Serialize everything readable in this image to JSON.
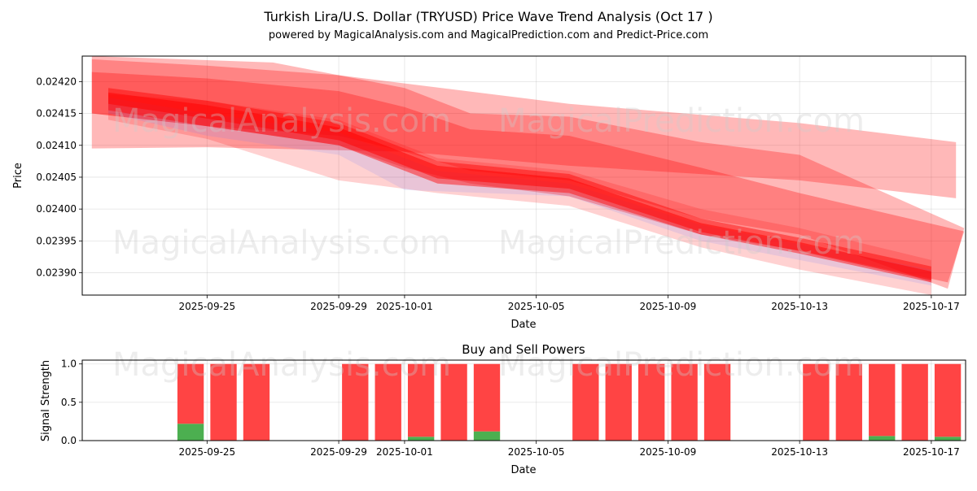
{
  "watermarks": [
    "MagicalAnalysis.com",
    "MagicalPrediction.com"
  ],
  "chart_data": [
    {
      "type": "area",
      "title": "Turkish Lira/U.S. Dollar (TRYUSD) Price Wave Trend Analysis (Oct 17 )",
      "subtitle": "powered by MagicalAnalysis.com and MagicalPrediction.com and Predict-Price.com",
      "xlabel": "Date",
      "ylabel": "Price",
      "xlim": [
        "2025-09-21T05:00",
        "2025-10-18T01:00"
      ],
      "ylim": [
        0.023865,
        0.02424
      ],
      "xticks": [
        "2025-09-25",
        "2025-09-29",
        "2025-10-01",
        "2025-10-05",
        "2025-10-09",
        "2025-10-13",
        "2025-10-17"
      ],
      "yticks": [
        "0.02390",
        "0.02395",
        "0.02400",
        "0.02405",
        "0.02410",
        "0.02415",
        "0.02420"
      ],
      "grid": true,
      "colors": {
        "band": "#ff0000",
        "blue_band": "#6677ff"
      },
      "bands": [
        {
          "color": "red",
          "opacity": 0.28,
          "upper": [
            [
              "2025-09-21T12:00",
              0.02424
            ],
            [
              "2025-09-27",
              0.02423
            ],
            [
              "2025-09-29",
              0.02421
            ],
            [
              "2025-10-06",
              0.024165
            ],
            [
              "2025-10-13",
              0.024135
            ],
            [
              "2025-10-17T18:00",
              0.024105
            ]
          ],
          "lower": [
            [
              "2025-09-21T12:00",
              0.024095
            ],
            [
              "2025-09-25",
              0.024097
            ],
            [
              "2025-10-01",
              0.02409
            ],
            [
              "2025-10-06",
              0.024068
            ],
            [
              "2025-10-13",
              0.024045
            ],
            [
              "2025-10-17T18:00",
              0.024017
            ]
          ]
        },
        {
          "color": "red",
          "opacity": 0.28,
          "upper": [
            [
              "2025-09-21T12:00",
              0.024235
            ],
            [
              "2025-09-25",
              0.024225
            ],
            [
              "2025-09-29",
              0.02421
            ],
            [
              "2025-10-01",
              0.02419
            ],
            [
              "2025-10-03",
              0.02415
            ],
            [
              "2025-10-06",
              0.024145
            ],
            [
              "2025-10-10",
              0.024105
            ],
            [
              "2025-10-13",
              0.024085
            ],
            [
              "2025-10-18",
              0.02397
            ]
          ],
          "lower": [
            [
              "2025-09-21T12:00",
              0.02415
            ],
            [
              "2025-09-25",
              0.02413
            ],
            [
              "2025-09-29",
              0.024115
            ],
            [
              "2025-10-01",
              0.02409
            ],
            [
              "2025-10-03",
              0.02406
            ],
            [
              "2025-10-06",
              0.024045
            ],
            [
              "2025-10-10",
              0.023985
            ],
            [
              "2025-10-13",
              0.02396
            ],
            [
              "2025-10-17T12:00",
              0.023875
            ]
          ]
        },
        {
          "color": "red",
          "opacity": 0.3,
          "upper": [
            [
              "2025-09-21T12:00",
              0.024215
            ],
            [
              "2025-09-25",
              0.024205
            ],
            [
              "2025-09-29",
              0.024185
            ],
            [
              "2025-10-01",
              0.02416
            ],
            [
              "2025-10-03",
              0.024125
            ],
            [
              "2025-10-06",
              0.024115
            ],
            [
              "2025-10-10",
              0.024065
            ],
            [
              "2025-10-13",
              0.024025
            ],
            [
              "2025-10-18",
              0.023965
            ]
          ],
          "lower": [
            [
              "2025-09-21T12:00",
              0.02415
            ],
            [
              "2025-09-25",
              0.02413
            ],
            [
              "2025-09-29",
              0.0241
            ],
            [
              "2025-10-01",
              0.024065
            ],
            [
              "2025-10-03",
              0.02404
            ],
            [
              "2025-10-06",
              0.02402
            ],
            [
              "2025-10-10",
              0.02396
            ],
            [
              "2025-10-13",
              0.023935
            ],
            [
              "2025-10-17T12:00",
              0.023885
            ]
          ]
        },
        {
          "color": "red",
          "opacity": 0.18,
          "upper": [
            [
              "2025-09-22",
              0.02418
            ],
            [
              "2025-09-25",
              0.02417
            ],
            [
              "2025-09-29",
              0.02414
            ],
            [
              "2025-10-02",
              0.02408
            ],
            [
              "2025-10-06",
              0.02406
            ],
            [
              "2025-10-10",
              0.024
            ],
            [
              "2025-10-13",
              0.02397
            ],
            [
              "2025-10-17",
              0.02392
            ]
          ],
          "lower": [
            [
              "2025-09-22",
              0.02414
            ],
            [
              "2025-09-25",
              0.02411
            ],
            [
              "2025-09-29",
              0.024045
            ],
            [
              "2025-10-02",
              0.024025
            ],
            [
              "2025-10-06",
              0.024005
            ],
            [
              "2025-10-10",
              0.02394
            ],
            [
              "2025-10-13",
              0.023905
            ],
            [
              "2025-10-17",
              0.023865
            ]
          ]
        },
        {
          "color": "blue",
          "opacity": 0.14,
          "upper": [
            [
              "2025-09-22",
              0.024175
            ],
            [
              "2025-09-25",
              0.02415
            ],
            [
              "2025-09-29",
              0.02412
            ],
            [
              "2025-10-02",
              0.02406
            ],
            [
              "2025-10-06",
              0.02404
            ],
            [
              "2025-10-10",
              0.023975
            ],
            [
              "2025-10-13",
              0.023945
            ],
            [
              "2025-10-17",
              0.023905
            ]
          ],
          "lower": [
            [
              "2025-09-22",
              0.02415
            ],
            [
              "2025-09-25",
              0.024115
            ],
            [
              "2025-09-29",
              0.024085
            ],
            [
              "2025-10-01",
              0.02403
            ],
            [
              "2025-10-06",
              0.02402
            ],
            [
              "2025-10-10",
              0.02395
            ],
            [
              "2025-10-13",
              0.02392
            ],
            [
              "2025-10-17",
              0.02388
            ]
          ]
        },
        {
          "color": "red",
          "opacity": 0.45,
          "upper": [
            [
              "2025-09-22",
              0.02419
            ],
            [
              "2025-09-25",
              0.02417
            ],
            [
              "2025-09-29",
              0.024135
            ],
            [
              "2025-10-02",
              0.024075
            ],
            [
              "2025-10-06",
              0.024055
            ],
            [
              "2025-10-10",
              0.023985
            ],
            [
              "2025-10-13",
              0.023955
            ],
            [
              "2025-10-17",
              0.02391
            ]
          ],
          "lower": [
            [
              "2025-09-22",
              0.024155
            ],
            [
              "2025-09-25",
              0.02413
            ],
            [
              "2025-09-29",
              0.0241
            ],
            [
              "2025-10-02",
              0.02404
            ],
            [
              "2025-10-06",
              0.024025
            ],
            [
              "2025-10-10",
              0.02396
            ],
            [
              "2025-10-13",
              0.02393
            ],
            [
              "2025-10-17",
              0.023885
            ]
          ]
        },
        {
          "color": "red",
          "opacity": 0.5,
          "upper": [
            [
              "2025-09-22",
              0.024183
            ],
            [
              "2025-09-25",
              0.024163
            ],
            [
              "2025-09-29",
              0.024128
            ],
            [
              "2025-10-02",
              0.024068
            ],
            [
              "2025-10-06",
              0.024048
            ],
            [
              "2025-10-10",
              0.023978
            ],
            [
              "2025-10-13",
              0.023948
            ],
            [
              "2025-10-17",
              0.023902
            ]
          ],
          "lower": [
            [
              "2025-09-22",
              0.024165
            ],
            [
              "2025-09-25",
              0.024142
            ],
            [
              "2025-09-29",
              0.024108
            ],
            [
              "2025-10-02",
              0.024048
            ],
            [
              "2025-10-06",
              0.024032
            ],
            [
              "2025-10-10",
              0.023964
            ],
            [
              "2025-10-13",
              0.023934
            ],
            [
              "2025-10-17",
              0.023888
            ]
          ]
        }
      ]
    },
    {
      "type": "bar",
      "title": "Buy and Sell Powers",
      "xlabel": "Date",
      "ylabel": "Signal Strength",
      "xlim": [
        "2025-09-21T05:00",
        "2025-10-18T01:00"
      ],
      "ylim": [
        0,
        1.05
      ],
      "xticks": [
        "2025-09-25",
        "2025-09-29",
        "2025-10-01",
        "2025-10-05",
        "2025-10-09",
        "2025-10-13",
        "2025-10-17"
      ],
      "yticks": [
        "0.0",
        "0.5",
        "1.0"
      ],
      "grid": true,
      "colors": {
        "buy": "#4caf50",
        "sell": "#ff4444"
      },
      "categories": [
        "2025-09-24",
        "2025-09-25",
        "2025-09-26",
        "2025-09-29",
        "2025-09-30",
        "2025-10-01",
        "2025-10-02",
        "2025-10-03",
        "2025-10-06",
        "2025-10-07",
        "2025-10-08",
        "2025-10-09",
        "2025-10-10",
        "2025-10-13",
        "2025-10-14",
        "2025-10-15",
        "2025-10-16",
        "2025-10-17"
      ],
      "series": [
        {
          "name": "Buy",
          "values": [
            0.22,
            0.0,
            0.0,
            0.0,
            0.0,
            0.05,
            0.0,
            0.12,
            0.0,
            0.0,
            0.0,
            0.0,
            0.0,
            0.0,
            0.0,
            0.06,
            0.0,
            0.05
          ]
        },
        {
          "name": "Sell",
          "values": [
            0.78,
            1.0,
            1.0,
            1.0,
            1.0,
            0.95,
            1.0,
            0.88,
            1.0,
            1.0,
            1.0,
            1.0,
            1.0,
            1.0,
            1.0,
            0.94,
            1.0,
            0.95
          ]
        }
      ]
    }
  ]
}
